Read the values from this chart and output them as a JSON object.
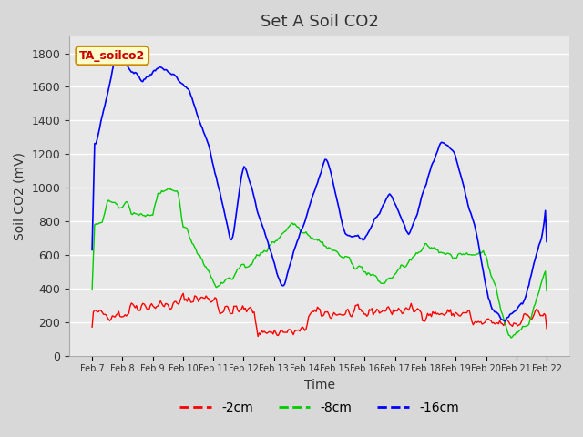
{
  "title": "Set A Soil CO2",
  "ylabel": "Soil CO2 (mV)",
  "xlabel": "Time",
  "legend_label": "TA_soilco2",
  "series_labels": [
    "-2cm",
    "-8cm",
    "-16cm"
  ],
  "series_colors": [
    "#ff0000",
    "#00cc00",
    "#0000ff"
  ],
  "background_color": "#e8e8e8",
  "plot_bg_color": "#e0e0e0",
  "ylim": [
    0,
    1900
  ],
  "yticks": [
    0,
    200,
    400,
    600,
    800,
    1000,
    1200,
    1400,
    1600,
    1800
  ],
  "x_labels": [
    "Feb 7",
    "Feb 8",
    "Feb 9",
    "Feb 10",
    "Feb 11",
    "Feb 12",
    "Feb 13",
    "Feb 14",
    "Feb 15",
    "Feb 16",
    "Feb 17",
    "Feb 18",
    "Feb 19",
    "Feb 20",
    "Feb 21",
    "Feb 22"
  ],
  "num_points": 360
}
